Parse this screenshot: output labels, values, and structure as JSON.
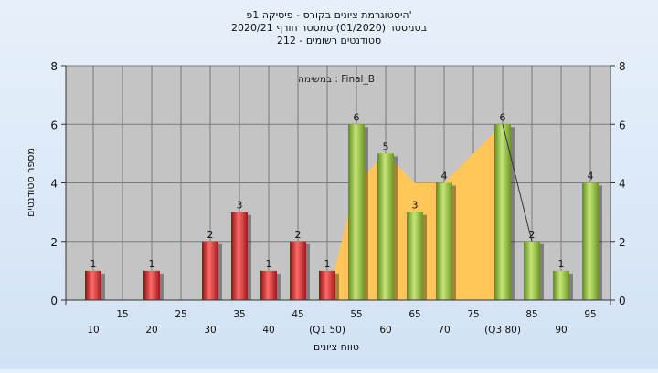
{
  "chart_data": {
    "type": "bar",
    "title_lines": [
      "היסטוגרמת ציונים בקורס - פיסיקה 1פ'",
      "בסמסטר  (01/2020)  סמסטר חורף  2020/21",
      "סטודנטים רשומים - 212"
    ],
    "annotation": "במשימה : Final_B",
    "xlabel": "טווח ציונים",
    "ylabel": "מספר סטודנטים",
    "ylim": [
      0,
      8
    ],
    "yticks": [
      "0",
      "2",
      "4",
      "6",
      "8"
    ],
    "x_tick_labels_upper": [
      "15",
      "25",
      "35",
      "45",
      "55",
      "65",
      "75",
      "85",
      "95"
    ],
    "x_tick_labels_lower": [
      "10",
      "20",
      "30",
      "40",
      "(Q1 50)",
      "60",
      "70",
      "(Q3 80)",
      "90"
    ],
    "series": [
      {
        "color": "#d93030",
        "points": [
          {
            "x": 10,
            "value": 1
          },
          {
            "x": 20,
            "value": 1
          },
          {
            "x": 30,
            "value": 2
          },
          {
            "x": 35,
            "value": 3
          },
          {
            "x": 40,
            "value": 1
          },
          {
            "x": 45,
            "value": 2
          },
          {
            "x": 50,
            "value": 1
          }
        ]
      },
      {
        "color": "#8cbf3c",
        "points": [
          {
            "x": 55,
            "value": 6
          },
          {
            "x": 60,
            "value": 5
          },
          {
            "x": 65,
            "value": 3
          },
          {
            "x": 70,
            "value": 4
          },
          {
            "x": 80,
            "value": 6
          },
          {
            "x": 85,
            "value": 2
          },
          {
            "x": 90,
            "value": 1
          },
          {
            "x": 95,
            "value": 4
          }
        ]
      }
    ],
    "area_band": {
      "color": "#ffc75a",
      "points": [
        {
          "x": 50,
          "value": 0
        },
        {
          "x": 55,
          "value": 4
        },
        {
          "x": 60,
          "value": 5
        },
        {
          "x": 65,
          "value": 4
        },
        {
          "x": 70,
          "value": 4
        },
        {
          "x": 80,
          "value": 6
        },
        {
          "x": 80,
          "value": 0
        }
      ]
    },
    "grid": true
  }
}
